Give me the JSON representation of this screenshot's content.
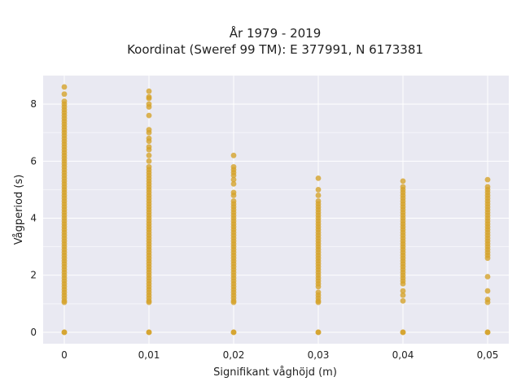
{
  "chart_data": {
    "type": "scatter",
    "title_line1": "År 1979 - 2019",
    "title_line2": "Koordinat (Sweref 99 TM): E 377991, N 6173381",
    "xlabel": "Signifikant våghöjd (m)",
    "ylabel": "Vågperiod (s)",
    "xlim": [
      -0.0025,
      0.0525
    ],
    "ylim": [
      -0.4,
      9.0
    ],
    "x_ticks": [
      0,
      0.01,
      0.02,
      0.03,
      0.04,
      0.05
    ],
    "x_tick_labels": [
      "0",
      "0,01",
      "0,02",
      "0,03",
      "0,04",
      "0,05"
    ],
    "y_ticks": [
      0,
      2,
      4,
      6,
      8
    ],
    "y_tick_labels": [
      "0",
      "2",
      "4",
      "6",
      "8"
    ],
    "grid": true,
    "background_color": "#e9e9f2",
    "marker_color": "#d4a32a",
    "columns": [
      {
        "x": 0,
        "y_values": [
          0,
          0,
          1.05,
          1.1,
          1.2,
          1.3,
          1.4,
          1.5,
          1.6,
          1.7,
          1.8,
          1.9,
          2.0,
          2.1,
          2.2,
          2.3,
          2.4,
          2.5,
          2.6,
          2.7,
          2.8,
          2.9,
          3.0,
          3.1,
          3.2,
          3.3,
          3.4,
          3.5,
          3.6,
          3.7,
          3.8,
          3.9,
          4.0,
          4.1,
          4.2,
          4.3,
          4.4,
          4.5,
          4.6,
          4.7,
          4.8,
          4.9,
          5.0,
          5.1,
          5.2,
          5.3,
          5.4,
          5.5,
          5.6,
          5.7,
          5.8,
          5.9,
          6.0,
          6.1,
          6.2,
          6.3,
          6.4,
          6.5,
          6.6,
          6.7,
          6.8,
          6.9,
          7.0,
          7.1,
          7.2,
          7.3,
          7.4,
          7.5,
          7.6,
          7.7,
          7.8,
          7.9,
          8.0,
          8.1,
          8.35,
          8.6
        ]
      },
      {
        "x": 0.01,
        "y_values": [
          0,
          0,
          1.05,
          1.1,
          1.2,
          1.3,
          1.4,
          1.5,
          1.6,
          1.7,
          1.8,
          1.9,
          2.0,
          2.1,
          2.2,
          2.3,
          2.4,
          2.5,
          2.6,
          2.7,
          2.8,
          2.9,
          3.0,
          3.1,
          3.2,
          3.3,
          3.4,
          3.5,
          3.6,
          3.7,
          3.8,
          3.9,
          4.0,
          4.1,
          4.2,
          4.3,
          4.4,
          4.5,
          4.6,
          4.7,
          4.8,
          4.9,
          5.0,
          5.1,
          5.2,
          5.3,
          5.4,
          5.5,
          5.6,
          5.7,
          5.8,
          6.0,
          6.2,
          6.4,
          6.5,
          6.7,
          6.8,
          7.0,
          7.1,
          7.6,
          7.9,
          8.0,
          8.2,
          8.25,
          8.45
        ]
      },
      {
        "x": 0.02,
        "y_values": [
          0,
          0,
          1.05,
          1.1,
          1.2,
          1.3,
          1.4,
          1.5,
          1.6,
          1.7,
          1.8,
          1.9,
          2.0,
          2.1,
          2.2,
          2.3,
          2.4,
          2.5,
          2.6,
          2.7,
          2.8,
          2.9,
          3.0,
          3.1,
          3.2,
          3.3,
          3.4,
          3.5,
          3.6,
          3.7,
          3.8,
          3.9,
          4.0,
          4.1,
          4.2,
          4.3,
          4.4,
          4.5,
          4.6,
          4.8,
          4.9,
          5.2,
          5.35,
          5.5,
          5.6,
          5.7,
          5.8,
          6.2
        ]
      },
      {
        "x": 0.03,
        "y_values": [
          0,
          0,
          1.05,
          1.1,
          1.2,
          1.3,
          1.4,
          1.6,
          1.7,
          1.8,
          1.9,
          2.0,
          2.1,
          2.2,
          2.3,
          2.4,
          2.5,
          2.6,
          2.7,
          2.8,
          2.9,
          3.0,
          3.1,
          3.2,
          3.3,
          3.4,
          3.5,
          3.6,
          3.7,
          3.8,
          3.9,
          4.0,
          4.1,
          4.2,
          4.3,
          4.4,
          4.5,
          4.6,
          4.8,
          5.0,
          5.4
        ]
      },
      {
        "x": 0.04,
        "y_values": [
          0,
          0,
          1.1,
          1.3,
          1.45,
          1.7,
          1.8,
          1.9,
          2.0,
          2.1,
          2.2,
          2.3,
          2.4,
          2.5,
          2.6,
          2.7,
          2.8,
          2.9,
          3.0,
          3.1,
          3.2,
          3.3,
          3.4,
          3.5,
          3.6,
          3.7,
          3.8,
          3.9,
          4.0,
          4.1,
          4.2,
          4.3,
          4.4,
          4.5,
          4.6,
          4.7,
          4.8,
          4.9,
          5.0,
          5.1,
          5.3
        ]
      },
      {
        "x": 0.05,
        "y_values": [
          0,
          0,
          1.05,
          1.15,
          1.45,
          1.95,
          2.6,
          2.7,
          2.8,
          2.9,
          3.0,
          3.1,
          3.2,
          3.3,
          3.4,
          3.5,
          3.6,
          3.7,
          3.8,
          3.9,
          4.0,
          4.1,
          4.2,
          4.3,
          4.4,
          4.5,
          4.6,
          4.7,
          4.8,
          4.9,
          5.0,
          5.1,
          5.35
        ]
      }
    ]
  }
}
